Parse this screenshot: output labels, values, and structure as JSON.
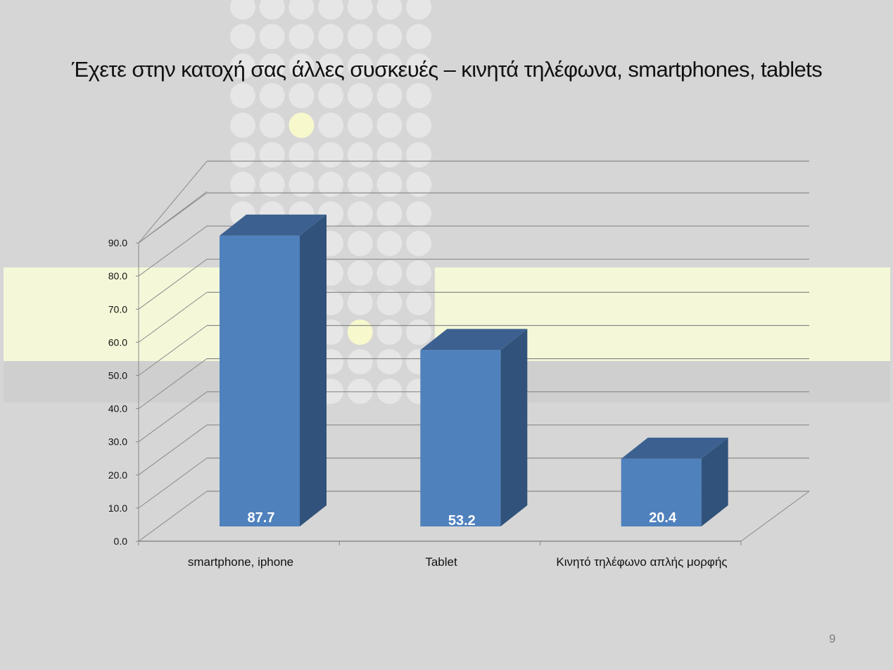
{
  "slide": {
    "page_number": "9"
  },
  "colors": {
    "background": "#d6d6d6",
    "band": "#f5f8d8",
    "circle": "#e6e6e6",
    "circle_highlight": "#f7f8cc",
    "bar_front": "#4f81bd",
    "bar_top": "#3c6190",
    "bar_side": "#31527a"
  },
  "chart_data": {
    "type": "bar",
    "style": "3d-column",
    "title": "Έχετε στην κατοχή σας άλλες συσκευές – κινητά τηλέφωνα, smartphones, tablets",
    "xlabel": "",
    "ylabel": "",
    "categories": [
      "smartphone, iphone",
      "Tablet",
      "Κινητό τηλέφωνο απλής μορφής"
    ],
    "values": [
      87.7,
      53.2,
      20.4
    ],
    "data_labels": [
      "87.7",
      "53.2",
      "20.4"
    ],
    "ylim": [
      0,
      90
    ],
    "yticks": [
      "0.0",
      "10.0",
      "20.0",
      "30.0",
      "40.0",
      "50.0",
      "60.0",
      "70.0",
      "80.0",
      "90.0"
    ],
    "grid": true,
    "legend": "none"
  }
}
